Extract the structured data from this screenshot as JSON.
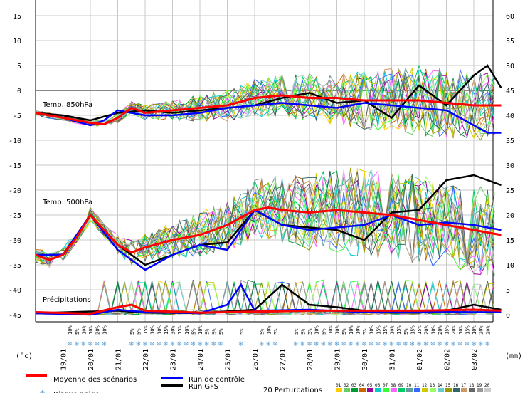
{
  "chart_data": {
    "type": "line",
    "left_axis": {
      "unit": "(°c)",
      "ticks": [
        15,
        10,
        5,
        0,
        -5,
        -10,
        -15,
        -20,
        -25,
        -30,
        -35,
        -40,
        -45
      ]
    },
    "right_axis": {
      "unit": "(mm)",
      "ticks": [
        60,
        55,
        50,
        45,
        40,
        35,
        30,
        25,
        20,
        15,
        10,
        5,
        0
      ]
    },
    "dates": [
      "19/01",
      "20/01",
      "21/01",
      "22/01",
      "23/01",
      "24/01",
      "25/01",
      "26/01",
      "27/01",
      "28/01",
      "29/01",
      "30/01",
      "31/01",
      "01/02",
      "02/02",
      "03/02"
    ],
    "panels": {
      "t850": "Temp. 850hPa",
      "t500": "Temp. 500hPa",
      "precip": "Précipitations"
    },
    "snow_probability": [
      {
        "day": 1.25,
        "label": "10%"
      },
      {
        "day": 1.5,
        "label": "5%"
      },
      {
        "day": 1.75,
        "label": "10%"
      },
      {
        "day": 2.0,
        "label": "10%"
      },
      {
        "day": 2.25,
        "label": "20%"
      },
      {
        "day": 2.5,
        "label": "10%"
      },
      {
        "day": 3.5,
        "label": "5%"
      },
      {
        "day": 3.75,
        "label": "5%"
      },
      {
        "day": 4.0,
        "label": "15%"
      },
      {
        "day": 4.25,
        "label": "10%"
      },
      {
        "day": 4.5,
        "label": "10%"
      },
      {
        "day": 4.75,
        "label": "15%"
      },
      {
        "day": 5.0,
        "label": "30%"
      },
      {
        "day": 5.25,
        "label": "15%"
      },
      {
        "day": 5.5,
        "label": "10%"
      },
      {
        "day": 5.75,
        "label": "5%"
      },
      {
        "day": 6.0,
        "label": "10%"
      },
      {
        "day": 6.25,
        "label": "5%"
      },
      {
        "day": 6.5,
        "label": "5%"
      },
      {
        "day": 6.75,
        "label": "5%"
      },
      {
        "day": 7.5,
        "label": "5%"
      },
      {
        "day": 8.25,
        "label": "5%"
      },
      {
        "day": 8.5,
        "label": "10%"
      },
      {
        "day": 8.75,
        "label": "5%"
      },
      {
        "day": 9.5,
        "label": "5%"
      },
      {
        "day": 9.75,
        "label": "5%"
      },
      {
        "day": 10.0,
        "label": "5%"
      },
      {
        "day": 10.25,
        "label": "10%"
      },
      {
        "day": 10.5,
        "label": "5%"
      },
      {
        "day": 10.75,
        "label": "10%"
      },
      {
        "day": 11.0,
        "label": "10%"
      },
      {
        "day": 11.25,
        "label": "5%"
      },
      {
        "day": 11.5,
        "label": "10%"
      },
      {
        "day": 11.75,
        "label": "10%"
      },
      {
        "day": 12.0,
        "label": "5%"
      },
      {
        "day": 12.25,
        "label": "10%"
      },
      {
        "day": 12.5,
        "label": "15%"
      },
      {
        "day": 12.75,
        "label": "15%"
      },
      {
        "day": 13.0,
        "label": "10%"
      },
      {
        "day": 13.25,
        "label": "15%"
      },
      {
        "day": 13.5,
        "label": "5%"
      },
      {
        "day": 13.75,
        "label": "15%"
      },
      {
        "day": 14.0,
        "label": "15%"
      },
      {
        "day": 14.25,
        "label": "20%"
      },
      {
        "day": 14.5,
        "label": "10%"
      },
      {
        "day": 14.75,
        "label": "20%"
      },
      {
        "day": 15.0,
        "label": "15%"
      },
      {
        "day": 15.25,
        "label": "20%"
      },
      {
        "day": 15.5,
        "label": "10%"
      },
      {
        "day": 15.75,
        "label": "15%"
      },
      {
        "day": 16.0,
        "label": "10%"
      },
      {
        "day": 16.25,
        "label": "20%"
      },
      {
        "day": 16.5,
        "label": "20%"
      }
    ],
    "series": [
      {
        "name": "Moyenne des scénarios",
        "color": "#ff0000",
        "t850": [
          [
            0,
            -4.5
          ],
          [
            1,
            -5.5
          ],
          [
            2,
            -6.5
          ],
          [
            2.5,
            -6.8
          ],
          [
            3,
            -5.5
          ],
          [
            3.5,
            -3.5
          ],
          [
            4,
            -4.5
          ],
          [
            5,
            -4.0
          ],
          [
            6,
            -3.5
          ],
          [
            7,
            -3.0
          ],
          [
            8,
            -1.5
          ],
          [
            9,
            -1.0
          ],
          [
            10,
            -1.5
          ],
          [
            11,
            -1.5
          ],
          [
            12,
            -2.0
          ],
          [
            13,
            -2.0
          ],
          [
            14,
            -2.0
          ],
          [
            15,
            -2.5
          ],
          [
            16,
            -3.0
          ],
          [
            17,
            -3.0
          ]
        ],
        "t500": [
          [
            0,
            -33.0
          ],
          [
            0.5,
            -34.0
          ],
          [
            1,
            -33.0
          ],
          [
            1.5,
            -29.5
          ],
          [
            2,
            -25.0
          ],
          [
            2.5,
            -28.0
          ],
          [
            3,
            -31.0
          ],
          [
            3.5,
            -32.5
          ],
          [
            4,
            -31.5
          ],
          [
            5,
            -30.0
          ],
          [
            6,
            -29.0
          ],
          [
            7,
            -27.0
          ],
          [
            8,
            -24.0
          ],
          [
            8.5,
            -23.5
          ],
          [
            9,
            -24.0
          ],
          [
            10,
            -24.5
          ],
          [
            11,
            -24.0
          ],
          [
            12,
            -24.5
          ],
          [
            13,
            -25.0
          ],
          [
            14,
            -26.0
          ],
          [
            15,
            -27.0
          ],
          [
            16,
            -28.0
          ],
          [
            16.5,
            -28.5
          ],
          [
            17,
            -29.0
          ]
        ],
        "precip": [
          [
            0,
            0.5
          ],
          [
            2,
            0.2
          ],
          [
            3,
            1.5
          ],
          [
            3.5,
            2.0
          ],
          [
            4,
            0.8
          ],
          [
            6,
            0.4
          ],
          [
            8,
            0.6
          ],
          [
            10,
            0.8
          ],
          [
            12,
            0.8
          ],
          [
            14,
            0.8
          ],
          [
            16,
            1.0
          ],
          [
            17,
            0.8
          ]
        ]
      },
      {
        "name": "Run de contrôle",
        "color": "#0000ff",
        "t850": [
          [
            0,
            -4.5
          ],
          [
            1,
            -5.5
          ],
          [
            2,
            -7.0
          ],
          [
            2.5,
            -6.0
          ],
          [
            3,
            -4.0
          ],
          [
            4,
            -5.0
          ],
          [
            5,
            -5.0
          ],
          [
            6,
            -4.5
          ],
          [
            7,
            -3.5
          ],
          [
            8,
            -3.0
          ],
          [
            9,
            -2.5
          ],
          [
            10,
            -3.0
          ],
          [
            11,
            -3.5
          ],
          [
            12,
            -2.5
          ],
          [
            13,
            -3.0
          ],
          [
            14,
            -3.5
          ],
          [
            15,
            -4.0
          ],
          [
            16,
            -7.0
          ],
          [
            16.5,
            -8.5
          ],
          [
            17,
            -8.5
          ]
        ],
        "t500": [
          [
            0,
            -33.0
          ],
          [
            1,
            -33.0
          ],
          [
            2,
            -25.0
          ],
          [
            3,
            -32.0
          ],
          [
            4,
            -36.0
          ],
          [
            5,
            -33.0
          ],
          [
            6,
            -31.0
          ],
          [
            7,
            -32.0
          ],
          [
            8,
            -24.0
          ],
          [
            9,
            -27.0
          ],
          [
            10,
            -28.0
          ],
          [
            11,
            -27.5
          ],
          [
            12,
            -27.0
          ],
          [
            13,
            -25.0
          ],
          [
            14,
            -27.0
          ],
          [
            15,
            -26.5
          ],
          [
            16,
            -27.0
          ],
          [
            17,
            -28.0
          ]
        ],
        "precip": [
          [
            0,
            0.3
          ],
          [
            2,
            0.0
          ],
          [
            3,
            1.0
          ],
          [
            4,
            0.5
          ],
          [
            6,
            0.3
          ],
          [
            7,
            2.0
          ],
          [
            7.5,
            6.0
          ],
          [
            8,
            0.8
          ],
          [
            10,
            1.0
          ],
          [
            12,
            0.5
          ],
          [
            14,
            0.6
          ],
          [
            16,
            0.5
          ],
          [
            17,
            0.5
          ]
        ]
      },
      {
        "name": "Run GFS",
        "color": "#000000",
        "t850": [
          [
            0,
            -4.5
          ],
          [
            1,
            -5.0
          ],
          [
            2,
            -6.0
          ],
          [
            3,
            -4.5
          ],
          [
            4,
            -4.0
          ],
          [
            5,
            -4.5
          ],
          [
            6,
            -4.0
          ],
          [
            7,
            -3.5
          ],
          [
            8,
            -3.0
          ],
          [
            9,
            -1.5
          ],
          [
            10,
            -0.5
          ],
          [
            11,
            -2.5
          ],
          [
            12,
            -2.0
          ],
          [
            13,
            -5.5
          ],
          [
            14,
            1.0
          ],
          [
            15,
            -3.0
          ],
          [
            16,
            3.0
          ],
          [
            16.5,
            5.0
          ],
          [
            17,
            0.5
          ]
        ],
        "t500": [
          [
            0,
            -33.0
          ],
          [
            1,
            -33.0
          ],
          [
            2,
            -25.0
          ],
          [
            3,
            -31.0
          ],
          [
            4,
            -35.0
          ],
          [
            5,
            -33.0
          ],
          [
            6,
            -31.0
          ],
          [
            7,
            -30.5
          ],
          [
            8,
            -24.0
          ],
          [
            9,
            -27.0
          ],
          [
            10,
            -27.5
          ],
          [
            11,
            -28.0
          ],
          [
            12,
            -30.0
          ],
          [
            13,
            -24.5
          ],
          [
            14,
            -24.0
          ],
          [
            15,
            -18.0
          ],
          [
            16,
            -17.0
          ],
          [
            17,
            -19.0
          ]
        ],
        "precip": [
          [
            0,
            0.3
          ],
          [
            3,
            0.8
          ],
          [
            4,
            0.4
          ],
          [
            6,
            0.3
          ],
          [
            8,
            1.0
          ],
          [
            9,
            6.0
          ],
          [
            10,
            2.0
          ],
          [
            11,
            1.5
          ],
          [
            12,
            0.8
          ],
          [
            13,
            0.4
          ],
          [
            14,
            0.4
          ],
          [
            15,
            0.8
          ],
          [
            16,
            2.0
          ],
          [
            17,
            1.0
          ]
        ]
      }
    ],
    "perturbations": {
      "label": "20 Perturbations",
      "ids": [
        "01",
        "02",
        "03",
        "04",
        "05",
        "06",
        "07",
        "08",
        "09",
        "10",
        "11",
        "12",
        "13",
        "14",
        "15",
        "16",
        "17",
        "18",
        "19",
        "20"
      ],
      "colors": [
        "#ffcc00",
        "#66cc66",
        "#009933",
        "#cc6600",
        "#990099",
        "#00cccc",
        "#33ff33",
        "#ff66ff",
        "#00cc66",
        "#669999",
        "#3366ff",
        "#cccc00",
        "#99ff66",
        "#66cccc",
        "#999900",
        "#336666",
        "#cc9966",
        "#666666",
        "#999999",
        "#cccccc"
      ]
    },
    "legend": {
      "snow": "Risque neige"
    },
    "grid": true
  }
}
